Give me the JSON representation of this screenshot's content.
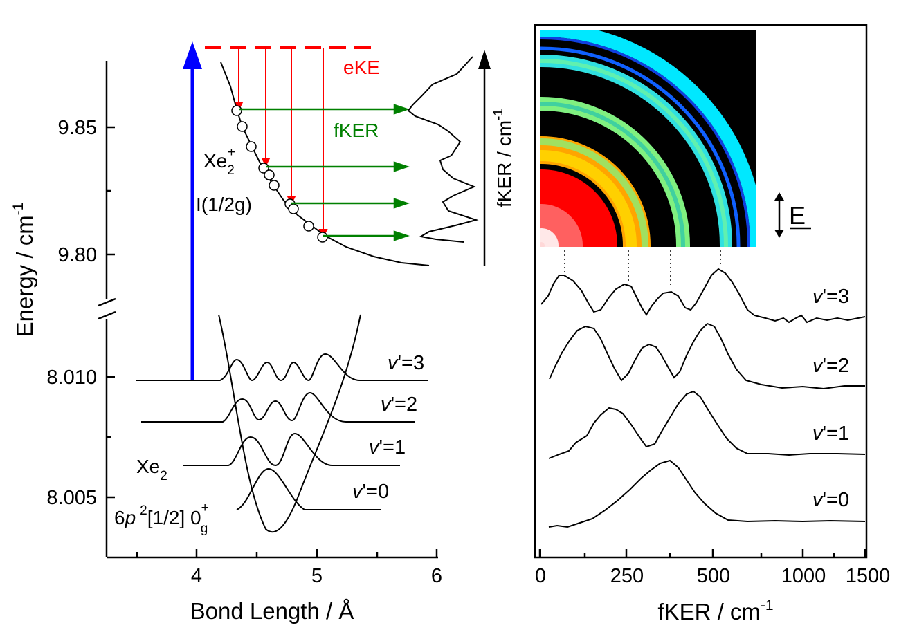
{
  "chart_data": [
    {
      "type": "line",
      "panel": "left",
      "xlabel": "Bond Length / Å",
      "ylabel": "Energy / cm-1",
      "ylabel_main": "Energy / cm",
      "ylabel_sup": "-1",
      "x_ticks": [
        "4",
        "5",
        "6"
      ],
      "xlim": [
        3.3,
        6.0
      ],
      "y_ticks_upper": [
        "9.85",
        "9.80"
      ],
      "y_ticks_lower": [
        "8.010",
        "8.005"
      ],
      "y_axis_break": true,
      "upper_labels": {
        "eke": "eKE",
        "fker": "fKER",
        "xe2plus_main": "Xe",
        "xe2plus_sub": "2",
        "xe2plus_sup": "+",
        "state": "I(1/2g)",
        "side_axis_main": "fKER / cm",
        "side_axis_sup": "-1"
      },
      "lower_labels": {
        "xe2_main": "Xe",
        "xe2_sub": "2",
        "state_prefix": "6",
        "state_p": "p",
        "state_sup2": "2",
        "state_mid": "[1/2] 0",
        "state_sup": "+",
        "state_sub": "g"
      },
      "vib_levels": [
        {
          "label_v": "v",
          "label_rest": "'=3",
          "energy": 8.01
        },
        {
          "label_v": "v",
          "label_rest": "'=2",
          "energy": 8.0083
        },
        {
          "label_v": "v",
          "label_rest": "'=1",
          "energy": 8.0065
        },
        {
          "label_v": "v",
          "label_rest": "'=0",
          "energy": 8.0047
        }
      ],
      "colors": {
        "excitation_arrow": "#0000ff",
        "eke": "#ff0000",
        "fker": "#008000",
        "curves": "#000000"
      }
    },
    {
      "type": "line",
      "panel": "right",
      "xlabel_main": "fKER / cm",
      "xlabel_sup": "-1",
      "x_ticks": [
        "0",
        "250",
        "500",
        "1000",
        "1500"
      ],
      "field_label": "E",
      "series": [
        {
          "label_v": "v",
          "label_rest": "'=3"
        },
        {
          "label_v": "v",
          "label_rest": "'=2"
        },
        {
          "label_v": "v",
          "label_rest": "'=1"
        },
        {
          "label_v": "v",
          "label_rest": "'=0"
        }
      ],
      "inset": "velocity-map image quadrant with four concentric rings"
    }
  ]
}
